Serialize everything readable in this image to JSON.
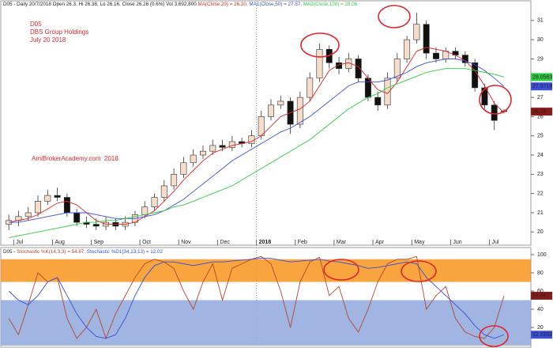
{
  "chart_data": [
    {
      "type": "candlestick",
      "header": [
        "D05 - Daily 20/7/2018 Open 26.3, Hi 26.38, Lo 26.16, Close 26.26 (0.6%) Vol 3,692,800 ",
        "MA(Close,20) = 26.20, ",
        "MA1(Close,50) = 27.57, ",
        "MA2(Close,100) = 28.06"
      ],
      "annotations": [
        "D05",
        "DBS Group Holdings",
        "July 20 2018",
        "AmiBrokerAcademy.com  2018"
      ],
      "categories": [
        null,
        "Jul",
        null,
        null,
        null,
        "Aug",
        null,
        null,
        null,
        "Sep",
        null,
        null,
        null,
        null,
        "Oct",
        null,
        null,
        null,
        "Nov",
        null,
        null,
        null,
        "Dec",
        null,
        null,
        null,
        "2018",
        null,
        null,
        null,
        "Feb",
        null,
        null,
        null,
        "Mar",
        null,
        null,
        null,
        "Apr",
        null,
        null,
        null,
        "May",
        null,
        null,
        null,
        "Jun",
        null,
        null,
        null,
        "Jul",
        null
      ],
      "open": [
        20.4,
        20.6,
        20.8,
        21.0,
        21.6,
        21.9,
        21.8,
        21.0,
        20.5,
        20.4,
        20.3,
        20.5,
        20.3,
        20.5,
        20.9,
        21.3,
        21.8,
        22.4,
        23.0,
        23.6,
        24.0,
        24.2,
        24.5,
        24.4,
        24.7,
        24.6,
        25.0,
        26.0,
        26.6,
        26.8,
        25.6,
        27.0,
        28.0,
        29.5,
        28.8,
        28.5,
        29.0,
        28.0,
        27.0,
        26.6,
        28.0,
        29.0,
        30.0,
        30.8,
        29.3,
        29.0,
        29.4,
        29.2,
        28.8,
        27.5,
        26.6,
        26.3
      ],
      "high": [
        20.9,
        21.1,
        21.3,
        21.9,
        22.2,
        22.3,
        22.0,
        21.2,
        20.8,
        20.7,
        20.8,
        20.7,
        20.8,
        21.1,
        21.6,
        22.0,
        22.7,
        23.3,
        23.9,
        24.3,
        24.5,
        24.8,
        24.8,
        25.0,
        24.9,
        25.3,
        26.3,
        26.9,
        27.1,
        27.0,
        27.3,
        28.3,
        29.8,
        29.7,
        29.1,
        29.3,
        29.2,
        28.2,
        27.3,
        28.3,
        29.3,
        30.2,
        31.4,
        31.0,
        29.6,
        29.6,
        29.6,
        29.4,
        29.0,
        27.7,
        26.8,
        26.38
      ],
      "low": [
        20.1,
        20.3,
        20.6,
        20.8,
        21.4,
        21.6,
        20.8,
        20.3,
        20.2,
        20.1,
        20.1,
        20.1,
        20.1,
        20.3,
        20.7,
        21.1,
        21.6,
        22.2,
        22.8,
        23.4,
        23.8,
        24.0,
        24.2,
        24.2,
        24.4,
        24.4,
        24.8,
        25.8,
        26.4,
        25.1,
        25.4,
        26.8,
        27.8,
        28.5,
        28.2,
        28.3,
        27.8,
        26.8,
        26.3,
        26.4,
        27.8,
        28.8,
        29.8,
        29.0,
        28.8,
        28.8,
        29.0,
        28.6,
        27.3,
        26.4,
        25.3,
        26.16
      ],
      "close": [
        20.6,
        20.8,
        21.0,
        21.6,
        21.9,
        21.8,
        21.0,
        20.5,
        20.4,
        20.3,
        20.5,
        20.3,
        20.5,
        20.9,
        21.3,
        21.8,
        22.4,
        23.0,
        23.6,
        24.0,
        24.2,
        24.5,
        24.4,
        24.7,
        24.6,
        25.0,
        26.0,
        26.6,
        26.8,
        25.6,
        27.0,
        28.0,
        29.5,
        28.8,
        28.5,
        29.0,
        28.0,
        27.0,
        26.6,
        28.0,
        29.0,
        30.0,
        30.8,
        29.3,
        29.0,
        29.4,
        29.2,
        28.8,
        27.5,
        26.6,
        25.8,
        26.26
      ],
      "up_color": "#f6dccb",
      "down_color": "#111111",
      "series": [
        {
          "color": "#e0262a",
          "values": [
            20.5,
            20.6,
            20.7,
            20.9,
            21.2,
            21.5,
            21.6,
            21.4,
            21.0,
            20.6,
            20.4,
            20.4,
            20.4,
            20.5,
            20.8,
            21.1,
            21.6,
            22.1,
            22.7,
            23.2,
            23.7,
            24.1,
            24.3,
            24.5,
            24.6,
            24.7,
            25.0,
            25.5,
            26.0,
            26.2,
            26.4,
            26.8,
            27.6,
            28.4,
            28.7,
            28.8,
            28.6,
            28.0,
            27.4,
            27.2,
            27.8,
            28.6,
            29.4,
            29.6,
            29.5,
            29.4,
            29.2,
            28.9,
            28.4,
            27.6,
            26.7,
            26.2
          ]
        },
        {
          "color": "#3b4fd8",
          "values": [
            20.5,
            20.5,
            20.6,
            20.7,
            20.8,
            20.9,
            21.0,
            21.0,
            21.0,
            20.9,
            20.8,
            20.7,
            20.7,
            20.7,
            20.8,
            20.9,
            21.1,
            21.4,
            21.7,
            22.1,
            22.5,
            22.9,
            23.3,
            23.7,
            24.0,
            24.3,
            24.6,
            24.9,
            25.2,
            25.4,
            25.7,
            26.0,
            26.4,
            26.8,
            27.2,
            27.6,
            27.8,
            27.8,
            27.8,
            27.9,
            28.1,
            28.3,
            28.6,
            28.8,
            28.9,
            29.0,
            29.0,
            28.9,
            28.7,
            28.4,
            28.0,
            27.57
          ]
        },
        {
          "color": "#2ecc40",
          "values": [
            19.7,
            19.8,
            19.9,
            20.0,
            20.1,
            20.2,
            20.3,
            20.4,
            20.5,
            20.5,
            20.6,
            20.6,
            20.7,
            20.8,
            20.9,
            21.0,
            21.1,
            21.3,
            21.4,
            21.6,
            21.8,
            22.0,
            22.2,
            22.4,
            22.7,
            23.0,
            23.3,
            23.6,
            23.9,
            24.2,
            24.5,
            24.8,
            25.2,
            25.6,
            26.0,
            26.4,
            26.7,
            27.0,
            27.2,
            27.5,
            27.7,
            27.9,
            28.1,
            28.3,
            28.4,
            28.5,
            28.5,
            28.5,
            28.4,
            28.3,
            28.2,
            28.06
          ]
        }
      ],
      "last_labels": [
        {
          "value": 28.0563,
          "label": "28.0563",
          "color": "#2ecc40"
        },
        {
          "value": 27.5718,
          "label": "27.5718",
          "color": "#3b4fd8"
        },
        {
          "value": 26.26,
          "label": "26.26",
          "color": "#8b1a1a"
        }
      ],
      "ylim": [
        19.6,
        31.9
      ],
      "yticks": [
        20,
        21,
        22,
        23,
        24,
        25,
        26,
        27,
        28,
        29,
        30,
        31
      ]
    },
    {
      "type": "line",
      "header": [
        "D05 - ",
        "Stochastic %K(14,3,3) = 54.87, ",
        "Stochastic %D1(34,13,13) = 12.02"
      ],
      "bands": [
        {
          "from": 70,
          "to": 95,
          "color": "#f7941d"
        },
        {
          "from": 0,
          "to": 50,
          "color": "#8fa8dd"
        }
      ],
      "series": [
        {
          "color": "#b5472f",
          "values": [
            30,
            12,
            45,
            80,
            70,
            75,
            30,
            8,
            20,
            40,
            8,
            35,
            55,
            75,
            90,
            95,
            92,
            85,
            60,
            40,
            70,
            90,
            50,
            85,
            90,
            95,
            98,
            90,
            60,
            20,
            70,
            92,
            97,
            55,
            65,
            30,
            15,
            40,
            70,
            90,
            95,
            95,
            98,
            40,
            55,
            65,
            30,
            15,
            10,
            8,
            20,
            54.867
          ]
        },
        {
          "color": "#3b4fd8",
          "values": [
            60,
            50,
            45,
            55,
            70,
            75,
            55,
            35,
            20,
            10,
            8,
            12,
            30,
            55,
            75,
            88,
            92,
            92,
            90,
            88,
            90,
            92,
            92,
            93,
            94,
            95,
            96,
            96,
            94,
            92,
            93,
            94,
            95,
            93,
            92,
            90,
            88,
            85,
            86,
            88,
            90,
            92,
            90,
            75,
            65,
            55,
            45,
            35,
            22,
            12,
            8,
            12.0202
          ]
        }
      ],
      "last_labels": [
        {
          "value": 54.867,
          "label": "54.867",
          "color": "#8b1a1a"
        },
        {
          "value": 12.0202,
          "label": "12.0202",
          "color": "#3b4fd8"
        }
      ],
      "ylim": [
        0,
        100
      ],
      "yticks": [
        20,
        40,
        60,
        80,
        100
      ]
    }
  ]
}
